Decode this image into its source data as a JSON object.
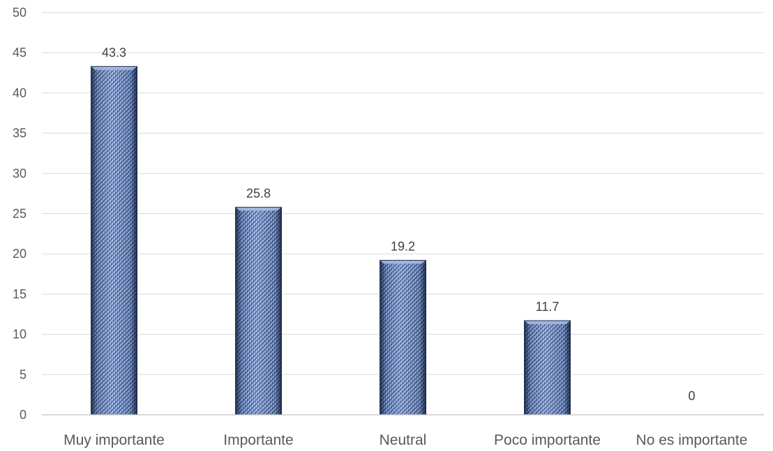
{
  "chart_data": {
    "type": "bar",
    "title": "",
    "xlabel": "",
    "ylabel": "",
    "categories": [
      "Muy importante",
      "Importante",
      "Neutral",
      "Poco importante",
      "No es importante"
    ],
    "values": [
      43.3,
      25.8,
      19.2,
      11.7,
      0
    ],
    "data_labels": [
      "43.3",
      "25.8",
      "19.2",
      "11.7",
      "0"
    ],
    "ylim": [
      0,
      50
    ],
    "yticks": [
      0,
      5,
      10,
      15,
      20,
      25,
      30,
      35,
      40,
      45,
      50
    ],
    "ytick_labels": [
      "0",
      "5",
      "10",
      "15",
      "20",
      "25",
      "30",
      "35",
      "40",
      "45",
      "50"
    ],
    "grid": true,
    "legend": "none",
    "colors": {
      "bar_fill": "#5a78b4",
      "bar_dark": "#1f3057",
      "bar_light": "#a9bce0",
      "grid": "#d9d9d9",
      "text": "#595959"
    }
  }
}
